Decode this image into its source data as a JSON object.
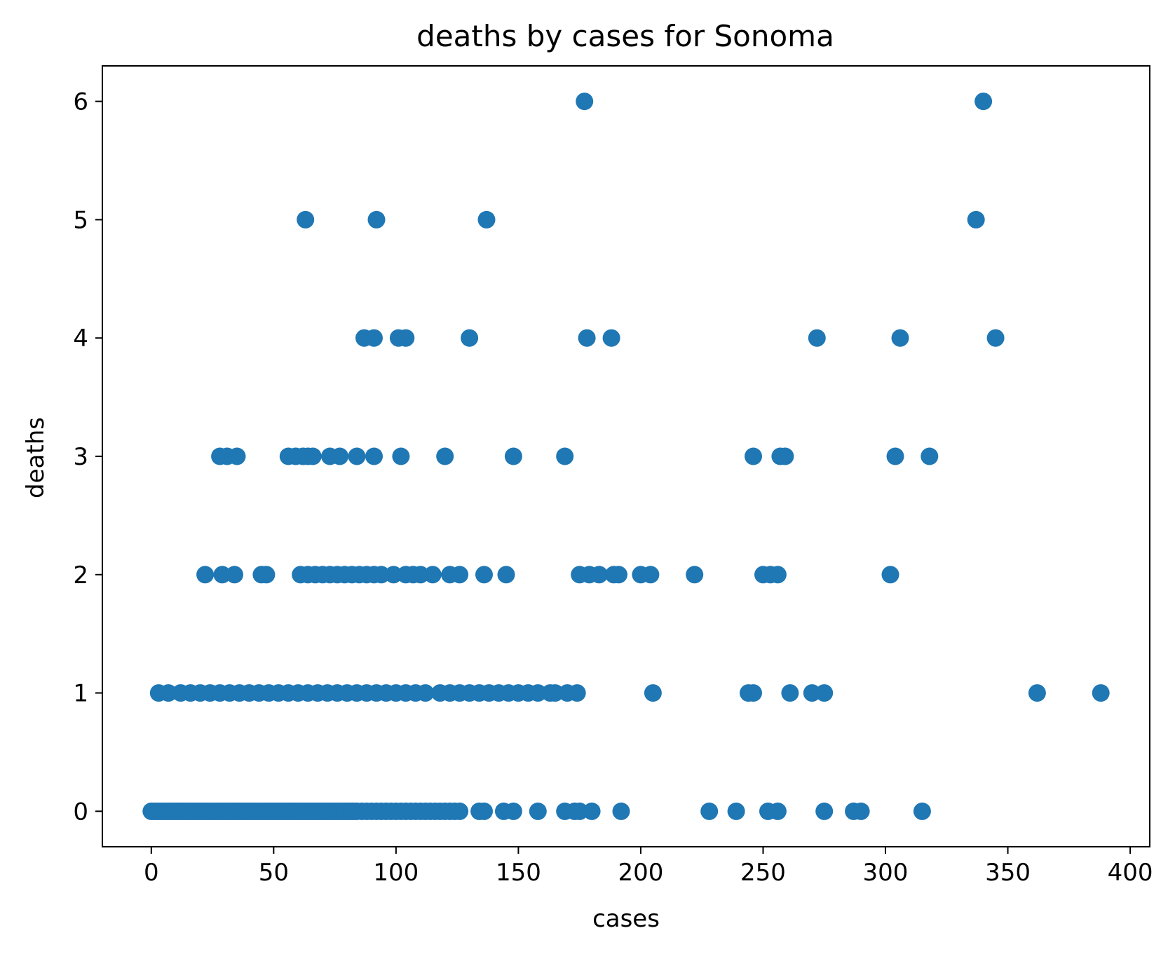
{
  "chart_data": {
    "type": "scatter",
    "title": "deaths by cases for Sonoma",
    "xlabel": "cases",
    "ylabel": "deaths",
    "xlim": [
      -20,
      408
    ],
    "ylim": [
      -0.3,
      6.3
    ],
    "xticks": [
      0,
      50,
      100,
      150,
      200,
      250,
      300,
      350,
      400
    ],
    "yticks": [
      0,
      1,
      2,
      3,
      4,
      5,
      6
    ],
    "grid": false,
    "legend": "none",
    "marker_color": "#1f77b4",
    "series": [
      {
        "x": [
          0,
          1,
          2,
          3,
          4,
          5,
          6,
          7,
          8,
          9,
          10,
          11,
          12,
          13,
          14,
          15,
          16,
          17,
          18,
          19,
          20,
          21,
          22,
          23,
          24,
          25,
          26,
          27,
          28,
          29,
          30,
          31,
          32,
          33,
          34,
          35,
          36,
          37,
          38,
          39,
          40,
          41,
          42,
          43,
          44,
          45,
          46,
          47,
          48,
          49,
          50,
          51,
          52,
          53,
          54,
          55,
          56,
          57,
          58,
          59,
          60,
          61,
          62,
          63,
          64,
          65,
          66,
          67,
          68,
          69,
          70,
          71,
          72,
          73,
          74,
          75,
          76,
          77,
          78,
          79,
          80,
          81,
          82,
          83,
          84,
          86,
          88,
          90,
          92,
          94,
          96,
          98,
          100,
          102,
          104,
          106,
          108,
          110,
          112,
          114,
          116,
          118,
          120,
          122,
          124,
          126,
          134,
          136,
          144,
          148,
          158,
          169,
          173,
          175,
          180,
          192,
          228,
          239,
          252,
          256,
          275,
          287,
          290,
          315,
          3,
          7,
          12,
          16,
          20,
          24,
          28,
          32,
          36,
          40,
          44,
          48,
          52,
          56,
          60,
          64,
          68,
          72,
          76,
          80,
          84,
          88,
          92,
          96,
          100,
          104,
          108,
          112,
          118,
          122,
          126,
          130,
          134,
          138,
          142,
          146,
          150,
          154,
          158,
          163,
          165,
          170,
          174,
          205,
          244,
          246,
          261,
          270,
          275,
          362,
          388,
          22,
          29,
          34,
          45,
          47,
          61,
          64,
          67,
          70,
          73,
          76,
          79,
          82,
          85,
          88,
          91,
          94,
          99,
          104,
          107,
          110,
          115,
          122,
          126,
          136,
          145,
          175,
          179,
          183,
          189,
          191,
          200,
          204,
          222,
          250,
          253,
          256,
          302,
          28,
          31,
          35,
          56,
          59,
          62,
          64,
          66,
          73,
          77,
          84,
          91,
          102,
          120,
          148,
          169,
          246,
          257,
          259,
          304,
          318,
          87,
          91,
          101,
          104,
          130,
          178,
          188,
          272,
          306,
          345,
          63,
          92,
          137,
          337,
          177,
          340
        ],
        "y": [
          0,
          0,
          0,
          0,
          0,
          0,
          0,
          0,
          0,
          0,
          0,
          0,
          0,
          0,
          0,
          0,
          0,
          0,
          0,
          0,
          0,
          0,
          0,
          0,
          0,
          0,
          0,
          0,
          0,
          0,
          0,
          0,
          0,
          0,
          0,
          0,
          0,
          0,
          0,
          0,
          0,
          0,
          0,
          0,
          0,
          0,
          0,
          0,
          0,
          0,
          0,
          0,
          0,
          0,
          0,
          0,
          0,
          0,
          0,
          0,
          0,
          0,
          0,
          0,
          0,
          0,
          0,
          0,
          0,
          0,
          0,
          0,
          0,
          0,
          0,
          0,
          0,
          0,
          0,
          0,
          0,
          0,
          0,
          0,
          0,
          0,
          0,
          0,
          0,
          0,
          0,
          0,
          0,
          0,
          0,
          0,
          0,
          0,
          0,
          0,
          0,
          0,
          0,
          0,
          0,
          0,
          0,
          0,
          0,
          0,
          0,
          0,
          0,
          0,
          0,
          0,
          0,
          0,
          0,
          0,
          0,
          0,
          0,
          0,
          1,
          1,
          1,
          1,
          1,
          1,
          1,
          1,
          1,
          1,
          1,
          1,
          1,
          1,
          1,
          1,
          1,
          1,
          1,
          1,
          1,
          1,
          1,
          1,
          1,
          1,
          1,
          1,
          1,
          1,
          1,
          1,
          1,
          1,
          1,
          1,
          1,
          1,
          1,
          1,
          1,
          1,
          1,
          1,
          1,
          1,
          1,
          1,
          1,
          1,
          1,
          2,
          2,
          2,
          2,
          2,
          2,
          2,
          2,
          2,
          2,
          2,
          2,
          2,
          2,
          2,
          2,
          2,
          2,
          2,
          2,
          2,
          2,
          2,
          2,
          2,
          2,
          2,
          2,
          2,
          2,
          2,
          2,
          2,
          2,
          2,
          2,
          2,
          2,
          3,
          3,
          3,
          3,
          3,
          3,
          3,
          3,
          3,
          3,
          3,
          3,
          3,
          3,
          3,
          3,
          3,
          3,
          3,
          3,
          3,
          4,
          4,
          4,
          4,
          4,
          4,
          4,
          4,
          4,
          4,
          5,
          5,
          5,
          5,
          6,
          6
        ]
      }
    ]
  }
}
